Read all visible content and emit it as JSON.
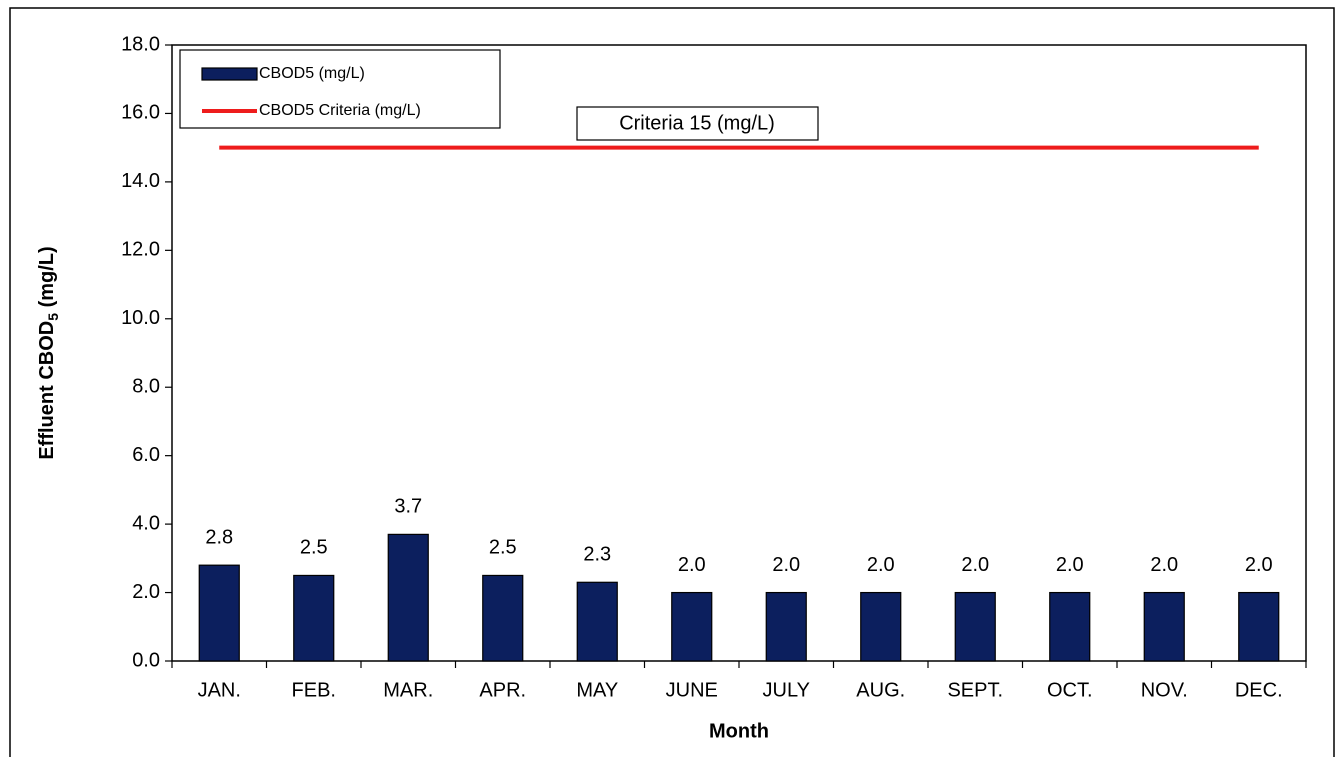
{
  "chart_data": {
    "type": "bar",
    "categories": [
      "JAN.",
      "FEB.",
      "MAR.",
      "APR.",
      "MAY",
      "JUNE",
      "JULY",
      "AUG.",
      "SEPT.",
      "OCT.",
      "NOV.",
      "DEC."
    ],
    "series": [
      {
        "name": "CBOD5 (mg/L)",
        "type": "bar",
        "color": "#0c1f5e",
        "values": [
          2.8,
          2.5,
          3.7,
          2.5,
          2.3,
          2,
          2,
          2,
          2,
          2,
          2,
          2
        ],
        "value_labels": [
          "2.8",
          "2.5",
          "3.7",
          "2.5",
          "2.3",
          "2.0",
          "2.0",
          "2.0",
          "2.0",
          "2.0",
          "2.0",
          "2.0"
        ]
      },
      {
        "name": "CBOD5 Criteria (mg/L)",
        "type": "line",
        "color": "#ee1c1c",
        "values": [
          15,
          15,
          15,
          15,
          15,
          15,
          15,
          15,
          15,
          15,
          15,
          15
        ]
      }
    ],
    "xlabel": "Month",
    "ylabel": {
      "text": "Effluent CBOD",
      "subscript": "5",
      "suffix": " (mg/L)"
    },
    "annotation": "Criteria 15 (mg/L)",
    "ylim": [
      0,
      18
    ],
    "yticks": [
      {
        "value": 0,
        "label": "0.0"
      },
      {
        "value": 2,
        "label": "2.0"
      },
      {
        "value": 4,
        "label": "4.0"
      },
      {
        "value": 6,
        "label": "6.0"
      },
      {
        "value": 8,
        "label": "8.0"
      },
      {
        "value": 10,
        "label": "10.0"
      },
      {
        "value": 12,
        "label": "12.0"
      },
      {
        "value": 14,
        "label": "14.0"
      },
      {
        "value": 16,
        "label": "16.0"
      },
      {
        "value": 18,
        "label": "18.0"
      }
    ],
    "legend": "upper left"
  }
}
